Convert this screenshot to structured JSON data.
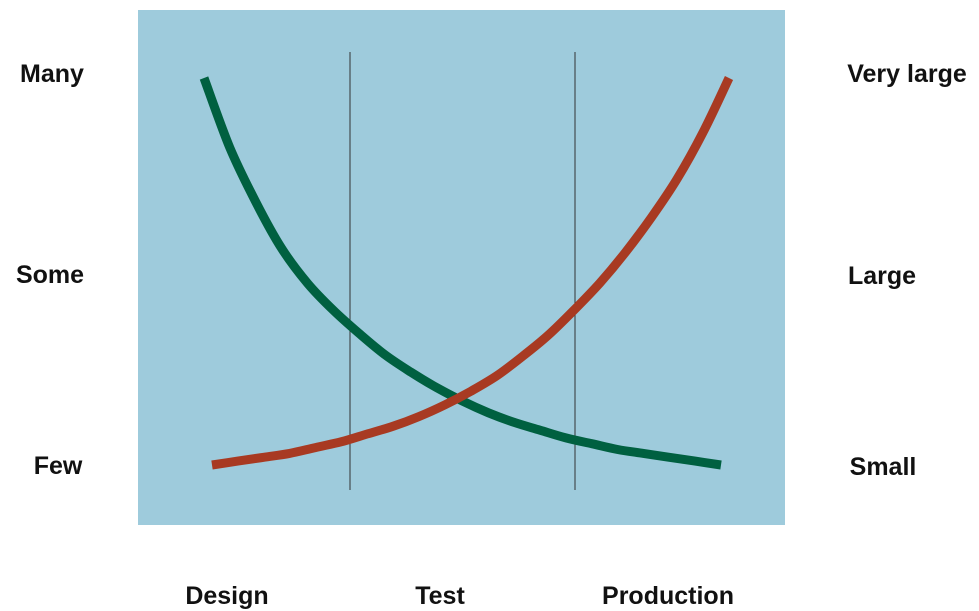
{
  "chart_data": {
    "type": "line",
    "title": "",
    "x_categories": [
      "Design",
      "Test",
      "Production"
    ],
    "left_axis_ticks": [
      "Many",
      "Some",
      "Few"
    ],
    "right_axis_ticks": [
      "Very large",
      "Large",
      "Small"
    ],
    "grid": "vertical separators between phases",
    "legend": "none",
    "x": [
      0.0,
      0.05,
      0.1,
      0.15,
      0.2,
      0.25,
      0.3,
      0.35,
      0.4,
      0.45,
      0.5,
      0.55,
      0.6,
      0.65,
      0.7,
      0.75,
      0.8,
      0.85,
      0.9,
      0.95,
      1.0
    ],
    "x_range": [
      0,
      1
    ],
    "y_range": [
      0,
      1
    ],
    "series": [
      {
        "axis": "left",
        "color": "#006040",
        "values": [
          1.0,
          0.82,
          0.68,
          0.56,
          0.47,
          0.4,
          0.34,
          0.285,
          0.24,
          0.2,
          0.165,
          0.135,
          0.11,
          0.09,
          0.07,
          0.055,
          0.04,
          0.03,
          0.02,
          0.01,
          0.0
        ]
      },
      {
        "axis": "right",
        "color": "#a83a22",
        "values": [
          0.0,
          0.01,
          0.02,
          0.03,
          0.045,
          0.06,
          0.08,
          0.1,
          0.125,
          0.155,
          0.19,
          0.23,
          0.28,
          0.335,
          0.4,
          0.47,
          0.55,
          0.64,
          0.74,
          0.86,
          1.0
        ]
      }
    ],
    "colors": {
      "plot_background": "#9ecbdc",
      "separator": "#333333"
    }
  }
}
